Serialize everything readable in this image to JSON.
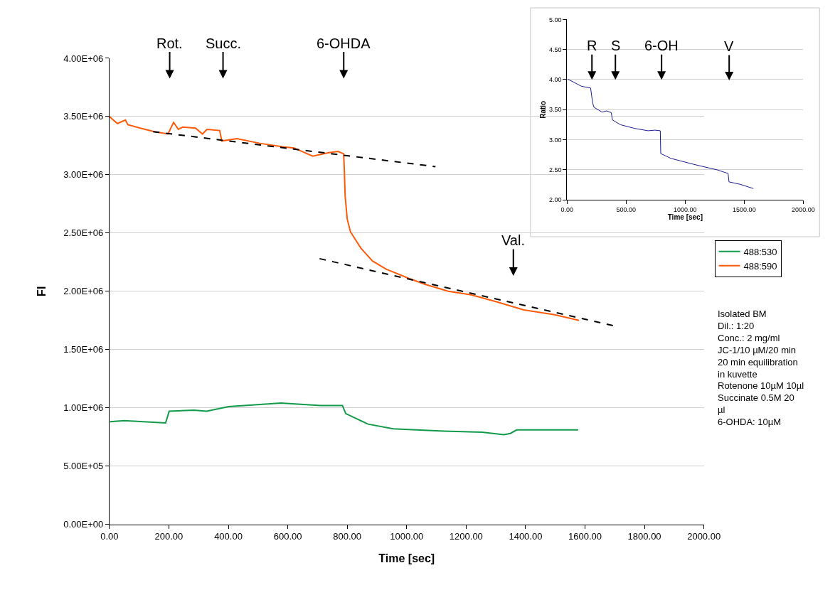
{
  "chart_data": [
    {
      "type": "line",
      "xlabel": "Time [sec]",
      "ylabel": "FI",
      "xlim": [
        0,
        2000
      ],
      "ylim": [
        0,
        4000000
      ],
      "xticks": [
        {
          "value": 0,
          "label": "0.00"
        },
        {
          "value": 200,
          "label": "200.00"
        },
        {
          "value": 400,
          "label": "400.00"
        },
        {
          "value": 600,
          "label": "600.00"
        },
        {
          "value": 800,
          "label": "800.00"
        },
        {
          "value": 1000,
          "label": "1000.00"
        },
        {
          "value": 1200,
          "label": "1200.00"
        },
        {
          "value": 1400,
          "label": "1400.00"
        },
        {
          "value": 1600,
          "label": "1600.00"
        },
        {
          "value": 1800,
          "label": "1800.00"
        },
        {
          "value": 2000,
          "label": "2000.00"
        }
      ],
      "yticks": [
        {
          "value": 0,
          "label": "0.00E+00"
        },
        {
          "value": 500000,
          "label": "5.00E+05"
        },
        {
          "value": 1000000,
          "label": "1.00E+06"
        },
        {
          "value": 1500000,
          "label": "1.50E+06"
        },
        {
          "value": 2000000,
          "label": "2.00E+06"
        },
        {
          "value": 2500000,
          "label": "2.50E+06"
        },
        {
          "value": 3000000,
          "label": "3.00E+06"
        },
        {
          "value": 3500000,
          "label": "3.50E+06"
        },
        {
          "value": 4000000,
          "label": "4.00E+06"
        }
      ],
      "grid": "y",
      "legend": "right",
      "series": [
        {
          "name": "488:530",
          "color": "#119a4a",
          "x": [
            2,
            50,
            189,
            201,
            284,
            327,
            401,
            577,
            710,
            784,
            795,
            870,
            955,
            1125,
            1253,
            1327,
            1349,
            1370,
            1577
          ],
          "values": [
            880000,
            890000,
            870000,
            970000,
            980000,
            970000,
            1010000,
            1040000,
            1020000,
            1020000,
            950000,
            860000,
            820000,
            800000,
            790000,
            770000,
            780000,
            810000,
            810000
          ]
        },
        {
          "name": "488:590",
          "color": "#ff5a0a",
          "x": [
            0,
            27,
            54,
            62,
            104,
            151,
            197,
            216,
            232,
            247,
            290,
            313,
            328,
            371,
            378,
            429,
            506,
            583,
            621,
            684,
            738,
            769,
            788,
            790,
            793,
            800,
            811,
            846,
            885,
            931,
            1008,
            1062,
            1140,
            1217,
            1302,
            1394,
            1495,
            1580
          ],
          "values": [
            3500000,
            3440000,
            3470000,
            3430000,
            3400000,
            3370000,
            3350000,
            3450000,
            3390000,
            3410000,
            3400000,
            3350000,
            3390000,
            3380000,
            3290000,
            3310000,
            3270000,
            3240000,
            3230000,
            3160000,
            3190000,
            3200000,
            3180000,
            3060000,
            2820000,
            2620000,
            2510000,
            2370000,
            2260000,
            2190000,
            2110000,
            2060000,
            2000000,
            1970000,
            1910000,
            1840000,
            1800000,
            1750000
          ]
        },
        {
          "type": "line",
          "color": "#000000",
          "line_style": "dashed",
          "x": [
            147,
            1097
          ],
          "values": [
            3370000,
            3070000
          ]
        },
        {
          "type": "line",
          "color": "#000000",
          "line_style": "dashed",
          "x": [
            707,
            1703
          ],
          "values": [
            2280000,
            1700000
          ]
        }
      ],
      "annotations": [
        "Rot.",
        "Succ.",
        "6-OHDA",
        "Val.",
        "Isolated BM\nDil.: 1:20\nConc.: 2 mg/ml\nJC-1/10 µM/20 min\n20 min equilibration\nin kuvette\nRotenone 10µM 10µl\nSuccinate 0.5M 20\nµl\n6-OHDA: 10µM"
      ]
    },
    {
      "type": "line",
      "xlabel": "Time [sec]",
      "ylabel": "Ratio",
      "xlim": [
        0,
        2000
      ],
      "ylim": [
        2,
        5
      ],
      "xticks": [
        {
          "value": 0,
          "label": "0.00"
        },
        {
          "value": 500,
          "label": "500.00"
        },
        {
          "value": 1000,
          "label": "1000.00"
        },
        {
          "value": 1500,
          "label": "1500.00"
        },
        {
          "value": 2000,
          "label": "2000.00"
        }
      ],
      "yticks": [
        {
          "value": 2,
          "label": "2.00"
        },
        {
          "value": 2.5,
          "label": "2.50"
        },
        {
          "value": 3,
          "label": "3.00"
        },
        {
          "value": 3.5,
          "label": "3.50"
        },
        {
          "value": 4,
          "label": "4.00"
        },
        {
          "value": 4.5,
          "label": "4.50"
        },
        {
          "value": 5,
          "label": "5.00"
        }
      ],
      "grid": "y",
      "series": [
        {
          "color": "#1a1a8c",
          "x": [
            4,
            121,
            199,
            208,
            218,
            228,
            296,
            335,
            374,
            384,
            452,
            569,
            685,
            744,
            789,
            793,
            880,
            1075,
            1270,
            1363,
            1371,
            1464,
            1577
          ],
          "values": [
            4.01,
            3.89,
            3.86,
            3.73,
            3.6,
            3.54,
            3.46,
            3.48,
            3.45,
            3.33,
            3.25,
            3.19,
            3.15,
            3.16,
            3.15,
            2.77,
            2.69,
            2.59,
            2.5,
            2.44,
            2.3,
            2.26,
            2.19
          ]
        }
      ],
      "annotations": [
        "R",
        "S",
        "6-OH",
        "V"
      ]
    }
  ]
}
